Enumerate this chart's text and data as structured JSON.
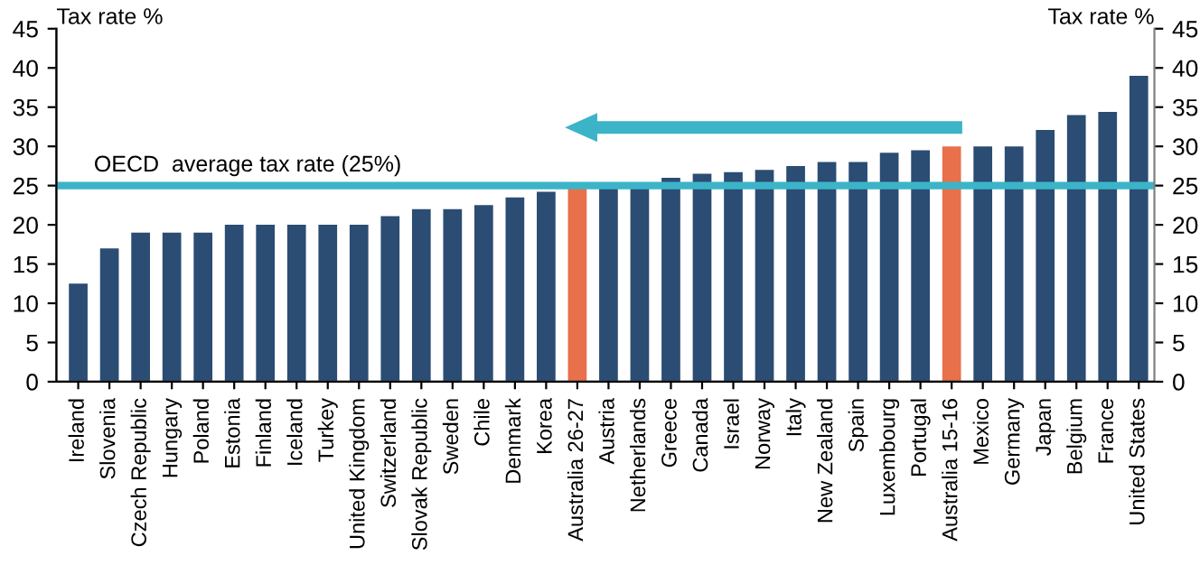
{
  "chart_data": {
    "type": "bar",
    "ylabel": "Tax rate %",
    "y2label": "Tax rate %",
    "categories": [
      "Ireland",
      "Slovenia",
      "Czech Republic",
      "Hungary",
      "Poland",
      "Estonia",
      "Finland",
      "Iceland",
      "Turkey",
      "United Kingdom",
      "Switzerland",
      "Slovak Republic",
      "Sweden",
      "Chile",
      "Denmark",
      "Korea",
      "Australia 26-27",
      "Austria",
      "Netherlands",
      "Greece",
      "Canada",
      "Israel",
      "Norway",
      "Italy",
      "New Zealand",
      "Spain",
      "Luxembourg",
      "Portugal",
      "Australia 15-16",
      "Mexico",
      "Germany",
      "Japan",
      "Belgium",
      "France",
      "United States"
    ],
    "values": [
      12.5,
      17,
      19,
      19,
      19,
      20,
      20,
      20,
      20,
      20,
      21.1,
      22,
      22,
      22.5,
      23.5,
      24.2,
      25,
      25,
      25,
      26,
      26.5,
      26.7,
      27,
      27.5,
      28,
      28,
      29.2,
      29.5,
      30,
      30,
      30,
      32.1,
      34,
      34.4,
      39
    ],
    "colors": [
      "#2b4c73",
      "#2b4c73",
      "#2b4c73",
      "#2b4c73",
      "#2b4c73",
      "#2b4c73",
      "#2b4c73",
      "#2b4c73",
      "#2b4c73",
      "#2b4c73",
      "#2b4c73",
      "#2b4c73",
      "#2b4c73",
      "#2b4c73",
      "#2b4c73",
      "#2b4c73",
      "#e8704a",
      "#2b4c73",
      "#2b4c73",
      "#2b4c73",
      "#2b4c73",
      "#2b4c73",
      "#2b4c73",
      "#2b4c73",
      "#2b4c73",
      "#2b4c73",
      "#2b4c73",
      "#2b4c73",
      "#e8704a",
      "#2b4c73",
      "#2b4c73",
      "#2b4c73",
      "#2b4c73",
      "#2b4c73",
      "#2b4c73"
    ],
    "ylim": [
      0,
      45
    ],
    "yticks": [
      0,
      5,
      10,
      15,
      20,
      25,
      30,
      35,
      40,
      45
    ],
    "y2lim": [
      0,
      45
    ],
    "y2ticks": [
      0,
      5,
      10,
      15,
      20,
      25,
      30,
      35,
      40,
      45
    ],
    "ref_lines": [
      {
        "axis": "y",
        "value": 25,
        "label": "OECD  average tax rate (25%)",
        "color": "#3cb4c8"
      }
    ],
    "grid": false
  }
}
